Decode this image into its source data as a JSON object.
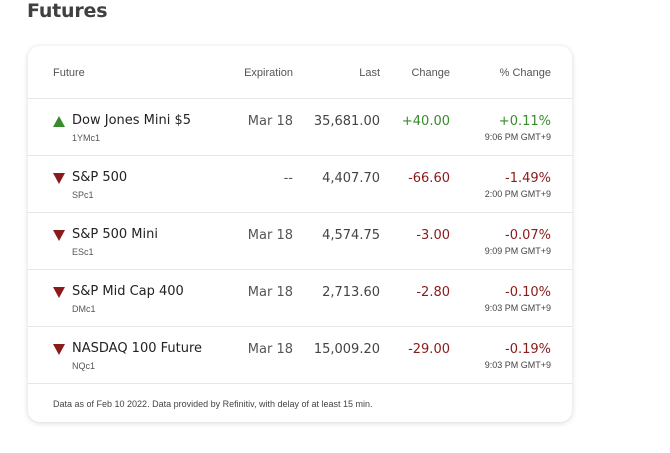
{
  "page": {
    "title": "Futures"
  },
  "table": {
    "headers": {
      "future": "Future",
      "expiration": "Expiration",
      "last": "Last",
      "change": "Change",
      "pct_change": "% Change"
    },
    "rows": [
      {
        "direction": "up",
        "name": "Dow Jones Mini $5",
        "symbol": "1YMc1",
        "expiration": "Mar 18",
        "last": "35,681.00",
        "change": "+40.00",
        "pct_change": "+0.11%",
        "time": "9:06 PM GMT+9"
      },
      {
        "direction": "down",
        "name": "S&P 500",
        "symbol": "SPc1",
        "expiration": "--",
        "last": "4,407.70",
        "change": "-66.60",
        "pct_change": "-1.49%",
        "time": "2:00 PM GMT+9"
      },
      {
        "direction": "down",
        "name": "S&P 500 Mini",
        "symbol": "ESc1",
        "expiration": "Mar 18",
        "last": "4,574.75",
        "change": "-3.00",
        "pct_change": "-0.07%",
        "time": "9:09 PM GMT+9"
      },
      {
        "direction": "down",
        "name": "S&P Mid Cap 400",
        "symbol": "DMc1",
        "expiration": "Mar 18",
        "last": "2,713.60",
        "change": "-2.80",
        "pct_change": "-0.10%",
        "time": "9:03 PM GMT+9"
      },
      {
        "direction": "down",
        "name": "NASDAQ 100 Future",
        "symbol": "NQc1",
        "expiration": "Mar 18",
        "last": "15,009.20",
        "change": "-29.00",
        "pct_change": "-0.19%",
        "time": "9:03 PM GMT+9"
      }
    ],
    "footnote": "Data as of Feb 10 2022. Data provided by Refinitiv, with delay of at least 15 min."
  },
  "colors": {
    "positive": "#3a8a2e",
    "negative": "#8b1a1a"
  },
  "icons": {
    "up": "triangle-up-icon",
    "down": "triangle-down-icon"
  }
}
